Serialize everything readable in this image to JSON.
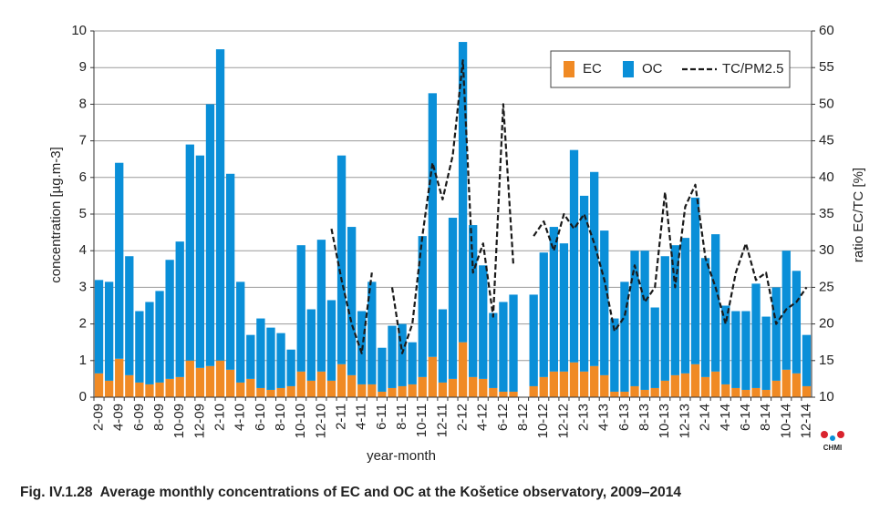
{
  "chart_data": {
    "type": "bar",
    "stacked": true,
    "x_label": "year-month",
    "y_label": "concentration [µg.m-3]",
    "y2_label": "ratio EC/TC [%]",
    "caption": "Fig. IV.1.28  Average monthly concentrations of EC and OC at the Košetice observatory, 2009–2014",
    "logo": "CHMI",
    "grid": true,
    "legend": "top-right",
    "ylim": [
      0,
      10
    ],
    "yticks": [
      0,
      1,
      2,
      3,
      4,
      5,
      6,
      7,
      8,
      9,
      10
    ],
    "y2lim": [
      10,
      60
    ],
    "y2ticks": [
      10,
      15,
      20,
      25,
      30,
      35,
      40,
      45,
      50,
      55,
      60
    ],
    "categories": [
      "2-09",
      null,
      "4-09",
      null,
      "6-09",
      null,
      "8-09",
      null,
      "10-09",
      null,
      "12-09",
      null,
      "2-10",
      null,
      "4-10",
      null,
      "6-10",
      null,
      "8-10",
      null,
      "10-10",
      null,
      "12-10",
      null,
      "2-11",
      null,
      "4-11",
      null,
      "6-11",
      null,
      "8-11",
      null,
      "10-11",
      null,
      "12-11",
      null,
      "2-12",
      null,
      "4-12",
      null,
      "6-12",
      null,
      "8-12",
      null,
      "10-12",
      null,
      "12-12",
      null,
      "2-13",
      null,
      "4-13",
      null,
      "6-13",
      null,
      "8-13",
      null,
      "10-13",
      null,
      "12-13",
      null,
      "2-14",
      null,
      "4-14",
      null,
      "6-14",
      null,
      "8-14",
      null,
      "10-14",
      null,
      "12-14"
    ],
    "series": [
      {
        "name": "EC",
        "color": "#f08a24",
        "values": [
          0.65,
          0.45,
          1.05,
          0.6,
          0.4,
          0.35,
          0.4,
          0.5,
          0.55,
          1.0,
          0.8,
          0.85,
          1.0,
          0.75,
          0.4,
          0.5,
          0.25,
          0.2,
          0.25,
          0.3,
          0.7,
          0.45,
          0.7,
          0.45,
          0.9,
          0.6,
          0.35,
          0.35,
          0.15,
          0.25,
          0.3,
          0.35,
          0.55,
          1.1,
          0.4,
          0.5,
          1.5,
          0.55,
          0.5,
          0.25,
          0.15,
          0.15,
          null,
          0.3,
          0.55,
          0.7,
          0.7,
          0.95,
          0.7,
          0.85,
          0.6,
          0.15,
          0.15,
          0.3,
          0.2,
          0.25,
          0.45,
          0.6,
          0.65,
          0.9,
          0.55,
          0.7,
          0.35,
          0.25,
          0.2,
          0.25,
          0.2,
          0.45,
          0.75,
          0.65,
          0.3
        ]
      },
      {
        "name": "OC",
        "color": "#0a8fd8",
        "values": [
          2.55,
          2.7,
          5.35,
          3.25,
          1.95,
          2.25,
          2.5,
          3.25,
          3.7,
          5.9,
          5.8,
          7.15,
          8.5,
          5.35,
          2.75,
          1.2,
          1.9,
          1.7,
          1.5,
          1.0,
          3.45,
          1.95,
          3.6,
          2.2,
          5.7,
          4.05,
          2.0,
          2.8,
          1.2,
          1.7,
          1.7,
          1.15,
          3.85,
          7.2,
          2.0,
          4.4,
          8.2,
          4.15,
          3.1,
          2.05,
          2.45,
          2.65,
          null,
          2.5,
          3.4,
          3.95,
          3.5,
          5.8,
          4.8,
          5.3,
          3.95,
          2.0,
          3.0,
          3.7,
          3.8,
          2.2,
          3.4,
          3.55,
          3.7,
          4.55,
          3.25,
          3.75,
          2.15,
          2.1,
          2.15,
          2.85,
          2.0,
          2.55,
          3.25,
          2.8,
          1.4
        ]
      },
      {
        "name": "TC/PM2.5",
        "color": "#1a1a1a",
        "type": "line",
        "axis": "y2",
        "dashed": true,
        "values": [
          null,
          null,
          null,
          null,
          null,
          null,
          null,
          null,
          null,
          null,
          null,
          null,
          null,
          null,
          null,
          null,
          null,
          null,
          null,
          null,
          null,
          null,
          null,
          33,
          26,
          20,
          16,
          27,
          null,
          25,
          16,
          20,
          32,
          42,
          37,
          43,
          56,
          27,
          31,
          21,
          50,
          28,
          null,
          32,
          34,
          30,
          35,
          33,
          35,
          31,
          26,
          19,
          21,
          28,
          23,
          25,
          38,
          25,
          36,
          39,
          29,
          25,
          20,
          27,
          31,
          26,
          27,
          20,
          22,
          23,
          25
        ]
      }
    ]
  }
}
